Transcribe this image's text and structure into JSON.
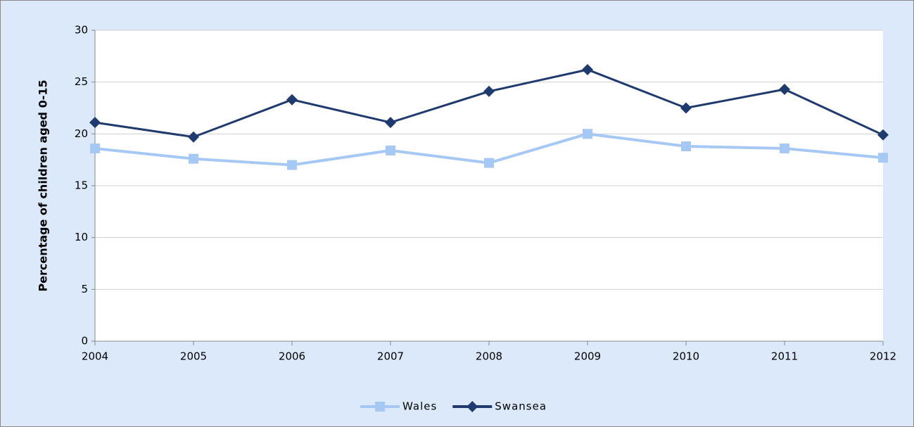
{
  "chart_data": {
    "type": "line",
    "y_label": "Percentage of children aged 0-15",
    "categories": [
      "2004",
      "2005",
      "2006",
      "2007",
      "2008",
      "2009",
      "2010",
      "2011",
      "2012"
    ],
    "series": [
      {
        "name": "Wales",
        "color": "#a6c8f5",
        "marker": "square",
        "values": [
          18.6,
          17.6,
          17.0,
          18.4,
          17.2,
          20.0,
          18.8,
          18.6,
          17.7
        ]
      },
      {
        "name": "Swansea",
        "color": "#1f3a6e",
        "marker": "diamond",
        "values": [
          21.1,
          19.7,
          23.3,
          21.1,
          24.1,
          26.2,
          22.5,
          24.3,
          19.9
        ]
      }
    ],
    "ylim": [
      0,
      30
    ],
    "yticks": [
      0,
      5,
      10,
      15,
      20,
      25,
      30
    ],
    "grid": true,
    "legend": "bottom"
  }
}
